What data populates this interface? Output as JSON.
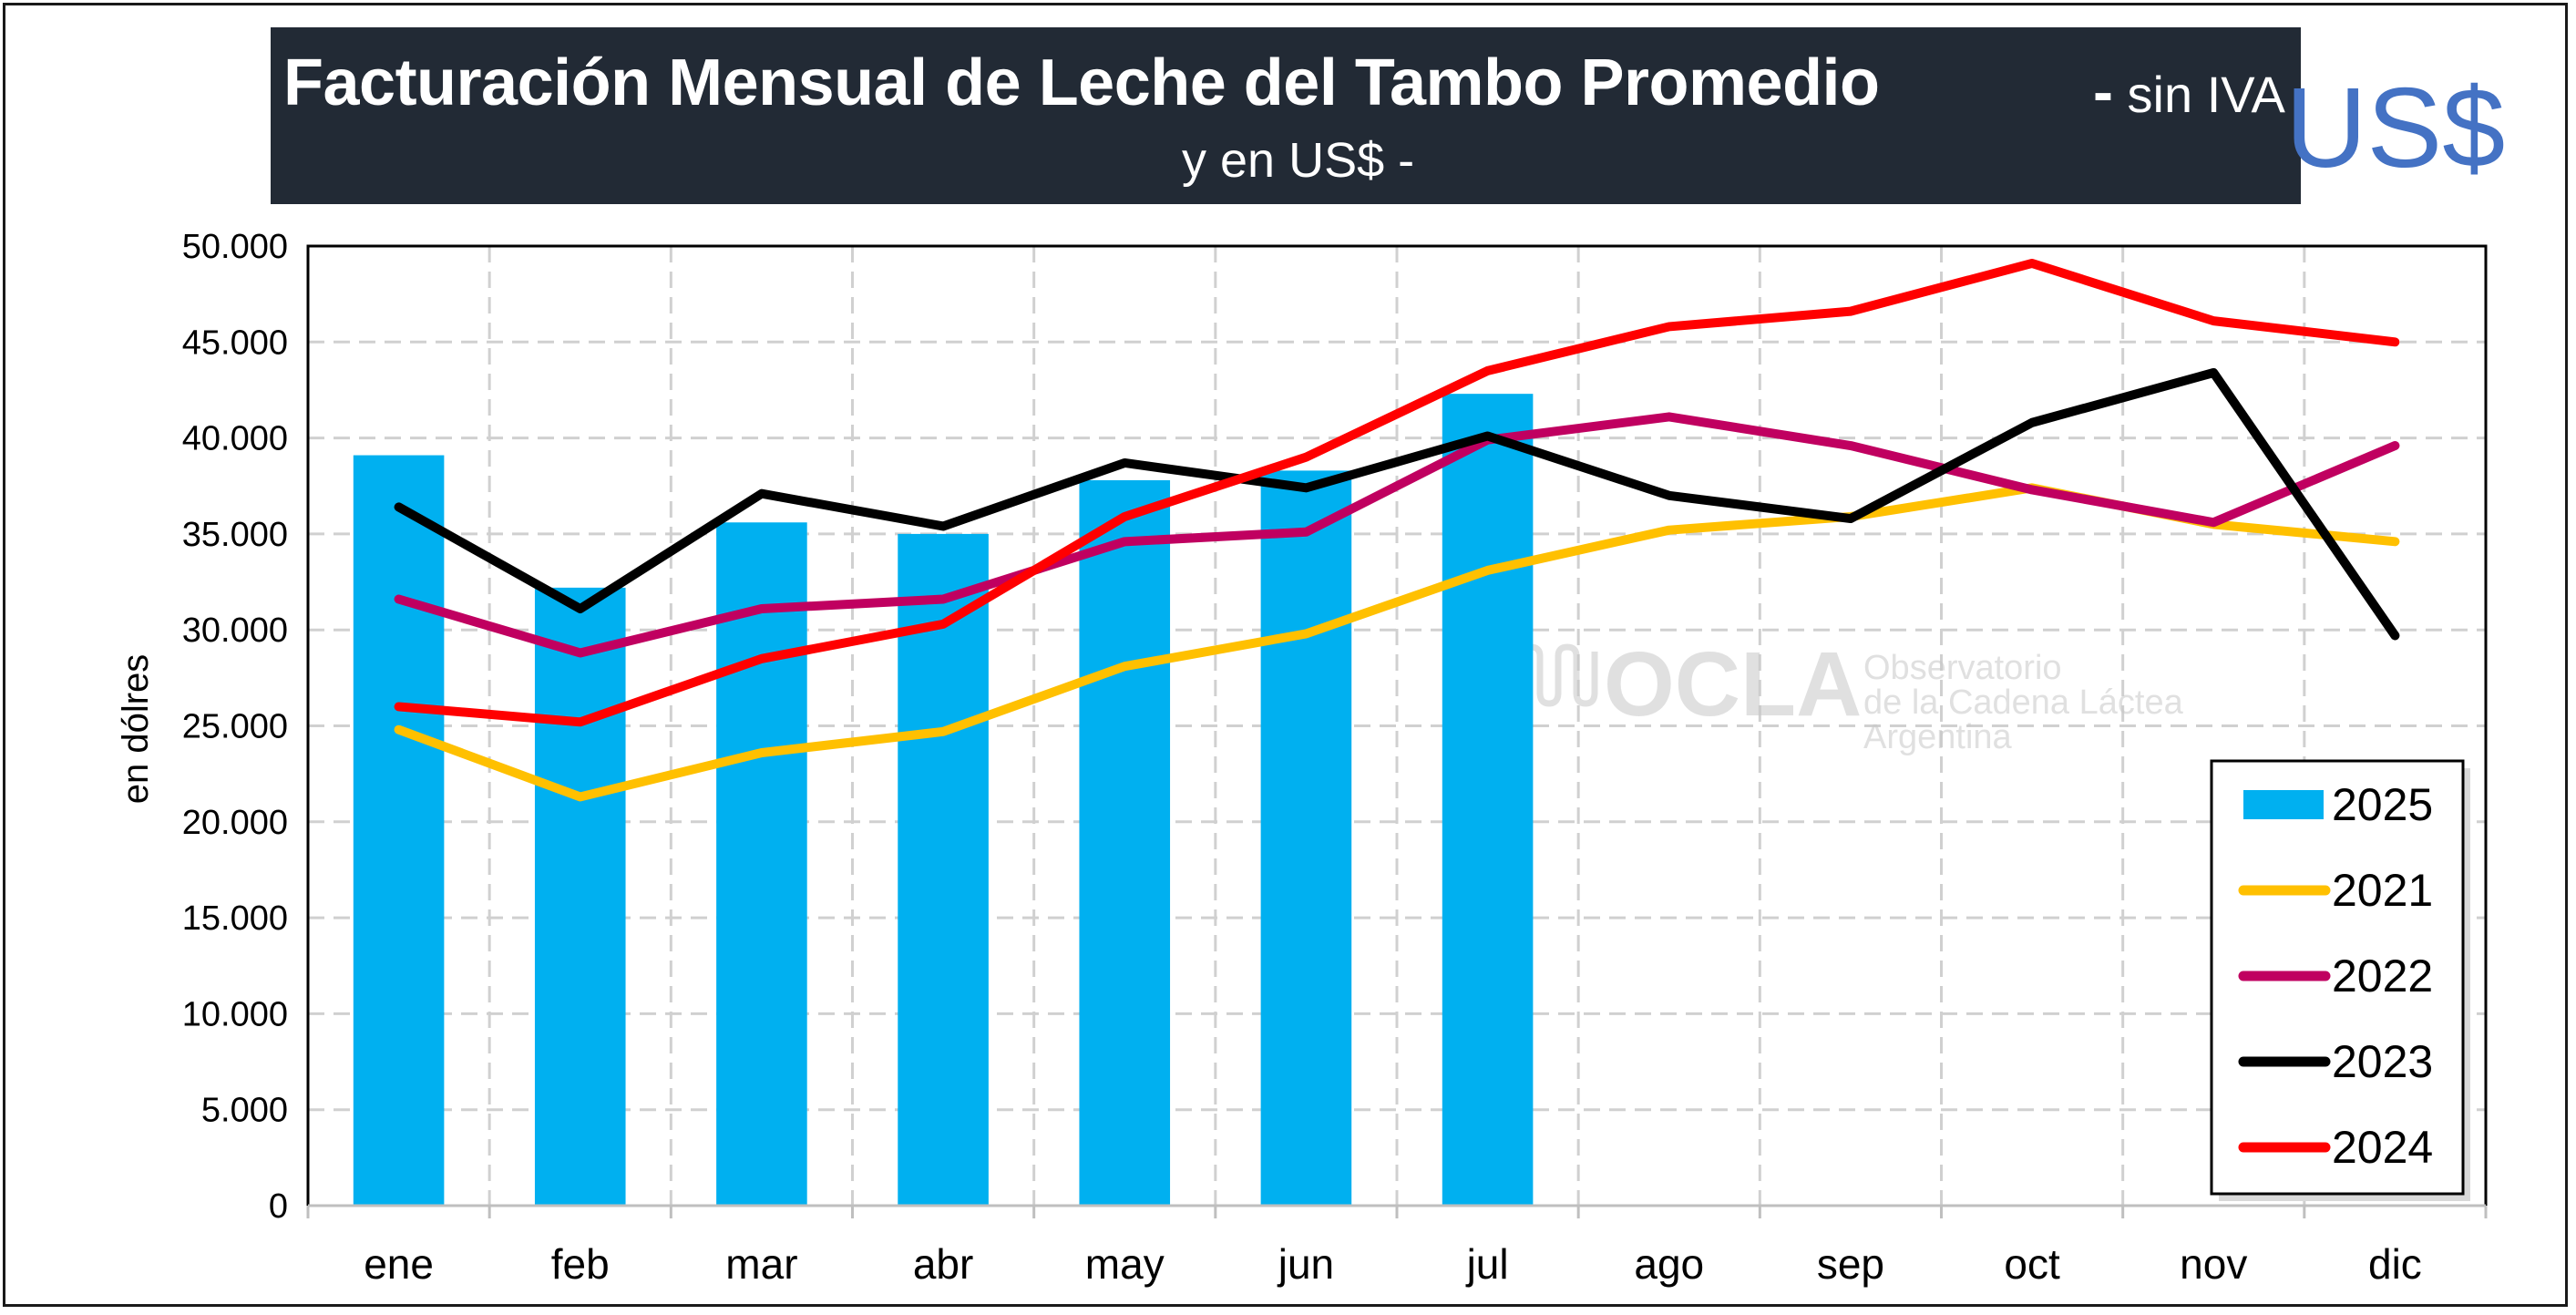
{
  "title": {
    "main": "Facturación Mensual de Leche del Tambo Promedio",
    "dash": "-",
    "side": "sin IVA",
    "sub": "y en US$ -",
    "currency": "US$"
  },
  "watermark": {
    "logo": "OCLA",
    "line1": "Observatorio",
    "line2": "de la Cadena Láctea",
    "line3": "Argentina"
  },
  "chart_data": {
    "type": "bar",
    "ylabel": "en dólres",
    "xlabel": "",
    "ylim": [
      0,
      50000
    ],
    "yticks": [
      0,
      5000,
      10000,
      15000,
      20000,
      25000,
      30000,
      35000,
      40000,
      45000,
      50000
    ],
    "ytick_labels": [
      "0",
      "5.000",
      "10.000",
      "15.000",
      "20.000",
      "25.000",
      "30.000",
      "35.000",
      "40.000",
      "45.000",
      "50.000"
    ],
    "categories": [
      "ene",
      "feb",
      "mar",
      "abr",
      "may",
      "jun",
      "jul",
      "ago",
      "sep",
      "oct",
      "nov",
      "dic"
    ],
    "grid": true,
    "legend_position": "bottom-right",
    "bar_series": {
      "name": "2025",
      "color": "#00b0f0",
      "values": [
        39100,
        32200,
        35600,
        35000,
        37800,
        38300,
        42300,
        null,
        null,
        null,
        null,
        null
      ]
    },
    "line_series": [
      {
        "name": "2021",
        "color": "#ffc000",
        "values": [
          24800,
          21300,
          23600,
          24700,
          28100,
          29800,
          33100,
          35200,
          35900,
          37400,
          35500,
          34600
        ]
      },
      {
        "name": "2022",
        "color": "#c00060",
        "values": [
          31600,
          28800,
          31100,
          31600,
          34600,
          35100,
          39900,
          41100,
          39600,
          37300,
          35600,
          39600
        ]
      },
      {
        "name": "2023",
        "color": "#000000",
        "values": [
          36400,
          31100,
          37100,
          35400,
          38700,
          37400,
          40100,
          37000,
          35800,
          40800,
          43400,
          29700
        ]
      },
      {
        "name": "2024",
        "color": "#ff0000",
        "values": [
          26000,
          25200,
          28500,
          30300,
          35900,
          39000,
          43500,
          45800,
          46600,
          49100,
          46100,
          45000
        ]
      }
    ]
  }
}
